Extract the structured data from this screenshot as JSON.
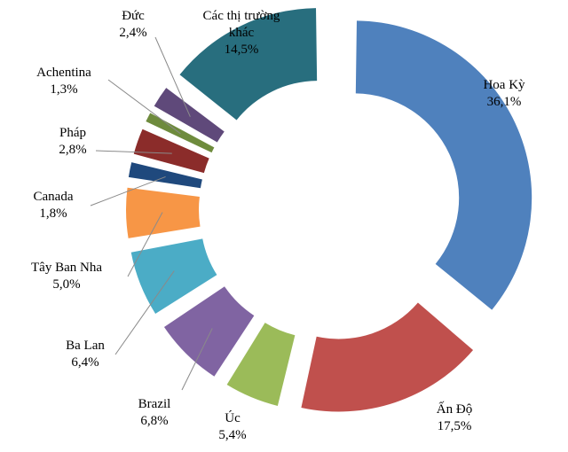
{
  "chart_data": {
    "type": "pie",
    "variant": "exploded-donut",
    "title": "",
    "start": "top, clockwise",
    "segments": [
      {
        "name": "Hoa Kỳ",
        "value": 36.1,
        "value_label": "36,1%",
        "color": "#4F81BD"
      },
      {
        "name": "Ấn Độ",
        "value": 17.5,
        "value_label": "17,5%",
        "color": "#C0504D"
      },
      {
        "name": "Úc",
        "value": 5.4,
        "value_label": "5,4%",
        "color": "#9BBB59"
      },
      {
        "name": "Brazil",
        "value": 6.8,
        "value_label": "6,8%",
        "color": "#8064A2"
      },
      {
        "name": "Ba Lan",
        "value": 6.4,
        "value_label": "6,4%",
        "color": "#4BACC6"
      },
      {
        "name": "Tây Ban Nha",
        "value": 5.0,
        "value_label": "5,0%",
        "color": "#F79646"
      },
      {
        "name": "Canada",
        "value": 1.8,
        "value_label": "1,8%",
        "color": "#1F497D"
      },
      {
        "name": "Pháp",
        "value": 2.8,
        "value_label": "2,8%",
        "color": "#8B2C2A"
      },
      {
        "name": "Achentina",
        "value": 1.3,
        "value_label": "1,3%",
        "color": "#6E8B3D"
      },
      {
        "name": "Đức",
        "value": 2.4,
        "value_label": "2,4%",
        "color": "#5F497A"
      },
      {
        "name": "Các thị trường khác",
        "value": 14.5,
        "value_label": "14,5%",
        "color": "#286E7E"
      }
    ]
  }
}
